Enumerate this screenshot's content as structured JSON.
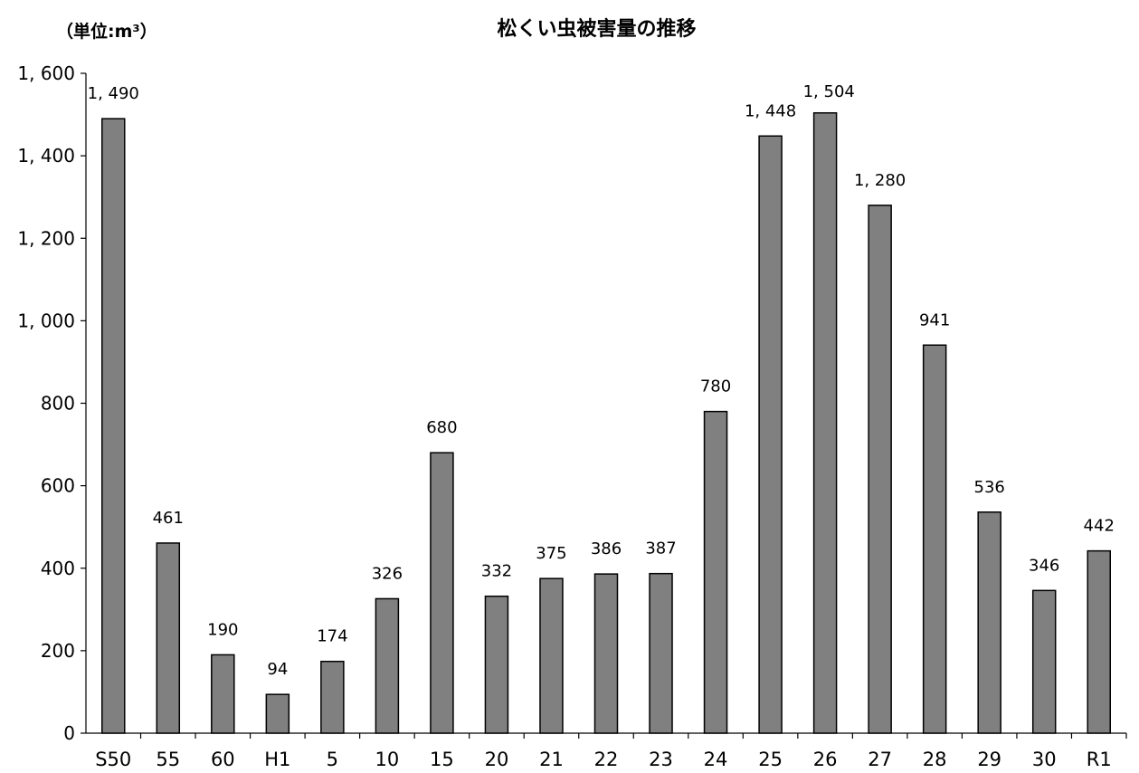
{
  "chart_data": {
    "type": "bar",
    "title": "松くい虫被害量の推移",
    "unit_label": "（単位:m³）",
    "categories": [
      "S50",
      "55",
      "60",
      "H1",
      "5",
      "10",
      "15",
      "20",
      "21",
      "22",
      "23",
      "24",
      "25",
      "26",
      "27",
      "28",
      "29",
      "30",
      "R1"
    ],
    "values": [
      1490,
      461,
      190,
      94,
      174,
      326,
      680,
      332,
      375,
      386,
      387,
      780,
      1448,
      1504,
      1280,
      941,
      536,
      346,
      442
    ],
    "data_labels": [
      "1, 490",
      "461",
      "190",
      "94",
      "174",
      "326",
      "680",
      "332",
      "375",
      "386",
      "387",
      "780",
      "1, 448",
      "1, 504",
      "1, 280",
      "941",
      "536",
      "346",
      "442"
    ],
    "y_ticks": [
      0,
      200,
      400,
      600,
      800,
      1000,
      1200,
      1400,
      1600
    ],
    "y_tick_labels": [
      "0",
      "200",
      "400",
      "600",
      "800",
      "1, 000",
      "1, 200",
      "1, 400",
      "1, 600"
    ],
    "xlabel": "",
    "ylabel": "",
    "ylim": [
      0,
      1600
    ],
    "grid": false,
    "legend": "none",
    "bar_color": "#808080",
    "bar_edge_color": "#000000"
  }
}
